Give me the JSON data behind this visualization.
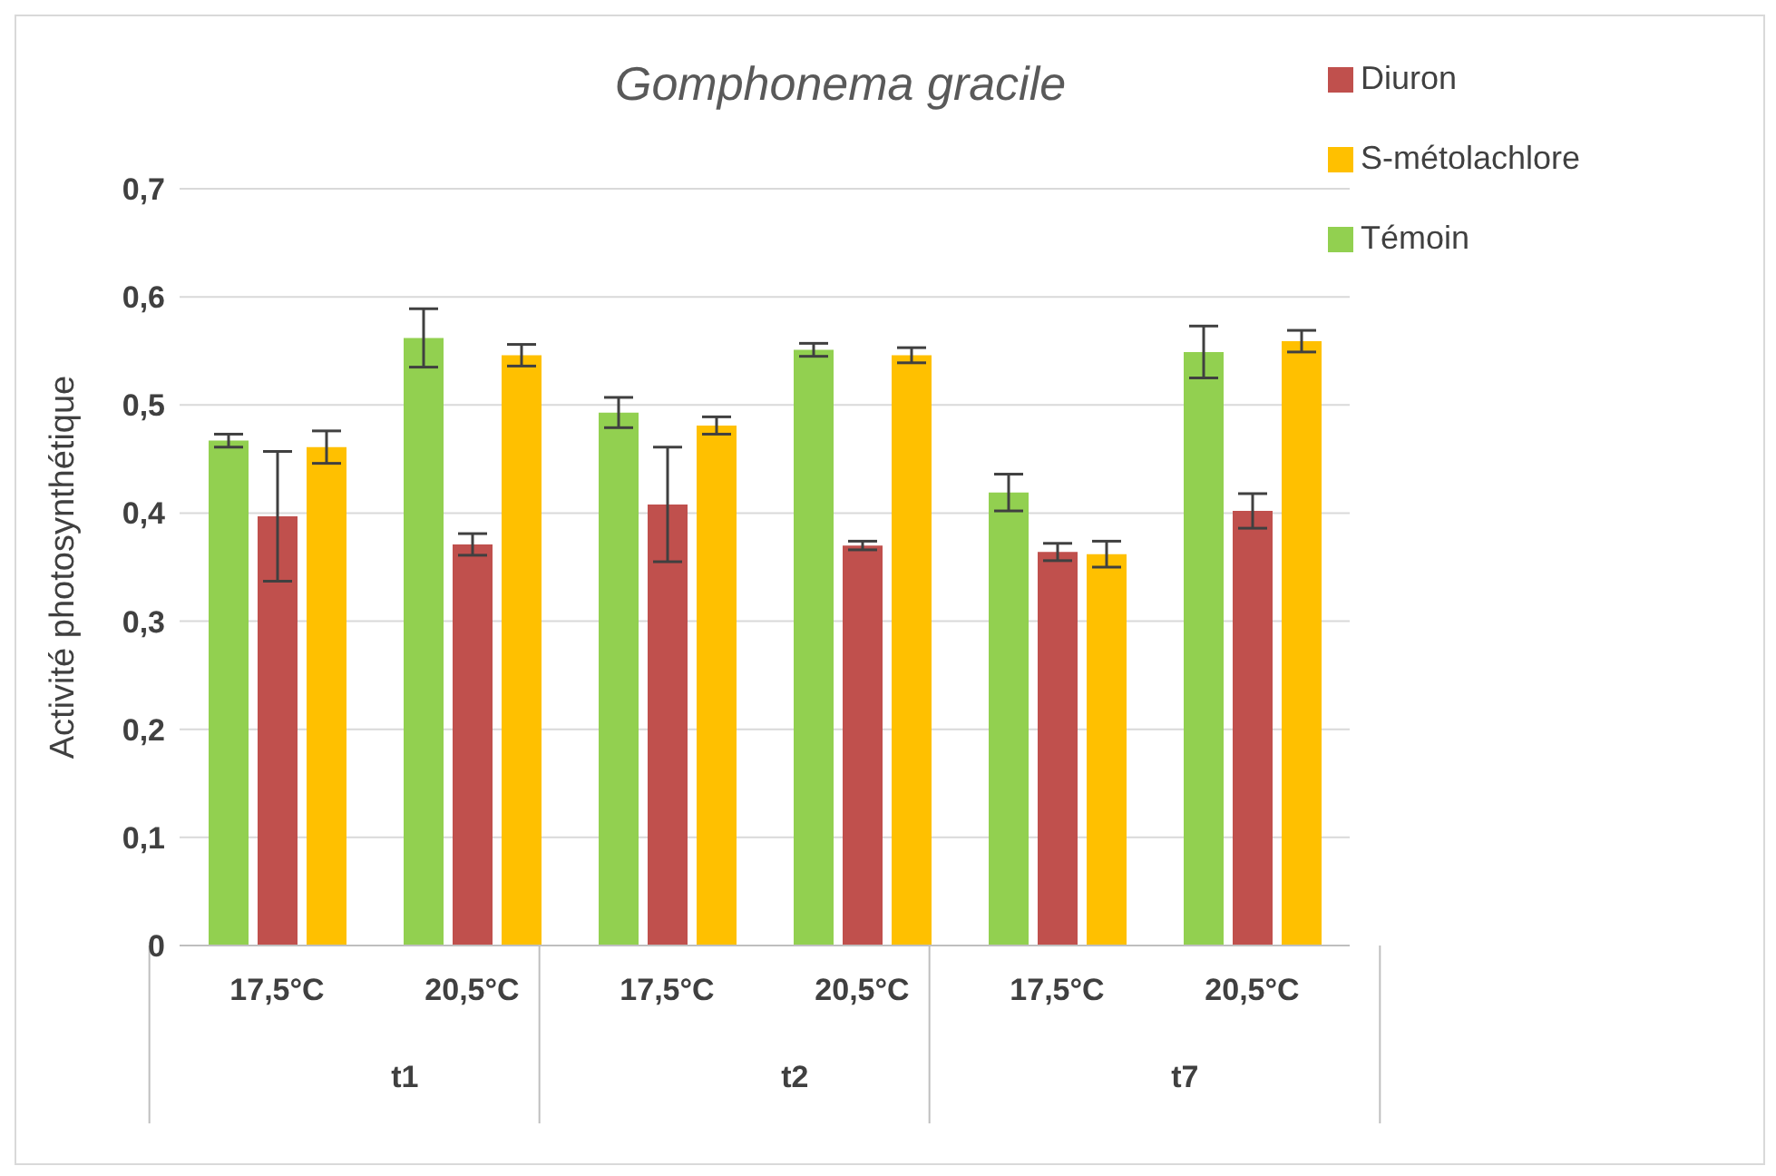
{
  "chart_data": {
    "type": "bar",
    "title": "Gomphonema gracile",
    "ylabel": "Activité photosynthétique",
    "categories": [
      "17,5°C",
      "20,5°C",
      "17,5°C",
      "20,5°C",
      "17,5°C",
      "20,5°C"
    ],
    "annotations": [
      "t1",
      "t2",
      "t7"
    ],
    "series": [
      {
        "name": "Témoin",
        "color": "#92d050",
        "values": [
          0.467,
          0.562,
          0.493,
          0.551,
          0.419,
          0.549
        ],
        "errors": [
          0.006,
          0.027,
          0.014,
          0.006,
          0.017,
          0.024
        ]
      },
      {
        "name": "Diuron",
        "color": "#c0504d",
        "values": [
          0.397,
          0.371,
          0.408,
          0.37,
          0.364,
          0.402
        ],
        "errors": [
          0.06,
          0.01,
          0.053,
          0.004,
          0.008,
          0.016
        ]
      },
      {
        "name": "S-métolachlore",
        "color": "#ffc000",
        "values": [
          0.461,
          0.546,
          0.481,
          0.546,
          0.362,
          0.559
        ],
        "errors": [
          0.015,
          0.01,
          0.008,
          0.007,
          0.012,
          0.01
        ]
      }
    ],
    "ylim": [
      0,
      0.7
    ],
    "yticks": [
      0,
      {
        "value": 0.1,
        "label": "0,1"
      },
      {
        "value": 0.2,
        "label": "0,2"
      },
      {
        "value": 0.3,
        "label": "0,3"
      },
      {
        "value": 0.4,
        "label": "0,4"
      },
      {
        "value": 0.5,
        "label": "0,5"
      },
      {
        "value": 0.6,
        "label": "0,6"
      },
      {
        "value": 0.7,
        "label": "0,7"
      }
    ],
    "grid": "y",
    "legend": "top right"
  }
}
